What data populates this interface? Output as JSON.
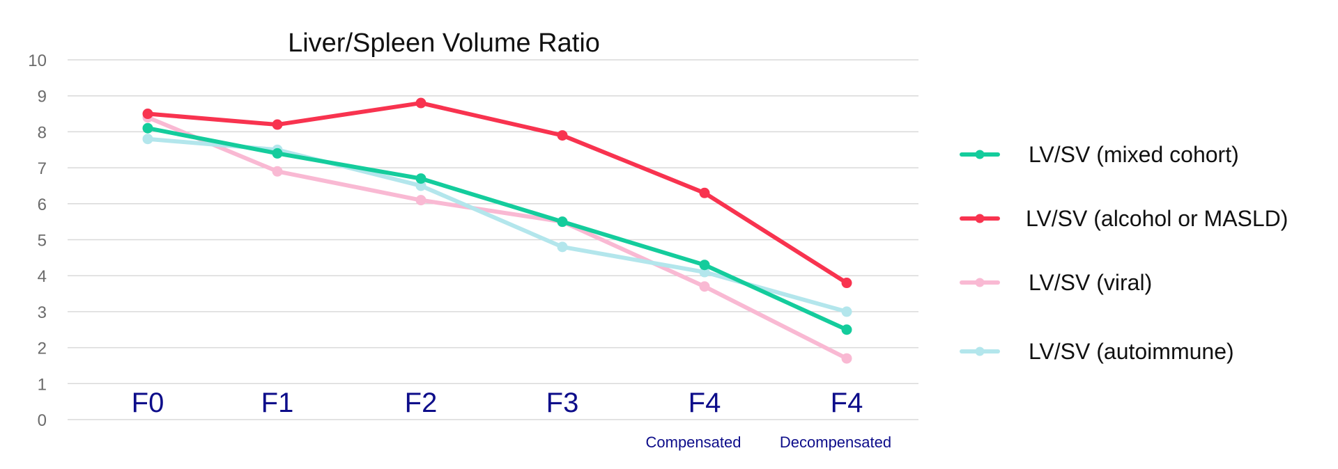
{
  "chart_data": {
    "type": "line",
    "title": "Liver/Spleen Volume Ratio",
    "categories": [
      "F0",
      "F1",
      "F2",
      "F3",
      "F4",
      "F4"
    ],
    "category_sublabels": [
      "",
      "",
      "",
      "",
      "Compensated",
      "Decompensated"
    ],
    "category_label_color": "#0d0d8a",
    "yticks": [
      "0",
      "1",
      "2",
      "3",
      "4",
      "5",
      "6",
      "7",
      "8",
      "9",
      "10"
    ],
    "ylim": [
      0,
      10
    ],
    "grid": true,
    "legend_position": "right",
    "series": [
      {
        "name": "LV/SV (viral)",
        "color": "#f9b9d3",
        "values": [
          8.4,
          6.9,
          6.1,
          5.5,
          3.7,
          1.7
        ]
      },
      {
        "name": "LV/SV (autoimmune)",
        "color": "#b3e6ec",
        "values": [
          7.8,
          7.5,
          6.5,
          4.8,
          4.1,
          3.0
        ]
      },
      {
        "name": "LV/SV (mixed cohort)",
        "color": "#14cc9c",
        "values": [
          8.1,
          7.4,
          6.7,
          5.5,
          4.3,
          2.5
        ]
      },
      {
        "name": "LV/SV (alcohol or MASLD)",
        "color": "#f8334f",
        "values": [
          8.5,
          8.2,
          8.8,
          7.9,
          6.3,
          3.8
        ]
      }
    ],
    "legend_order": [
      2,
      3,
      0,
      1
    ]
  }
}
